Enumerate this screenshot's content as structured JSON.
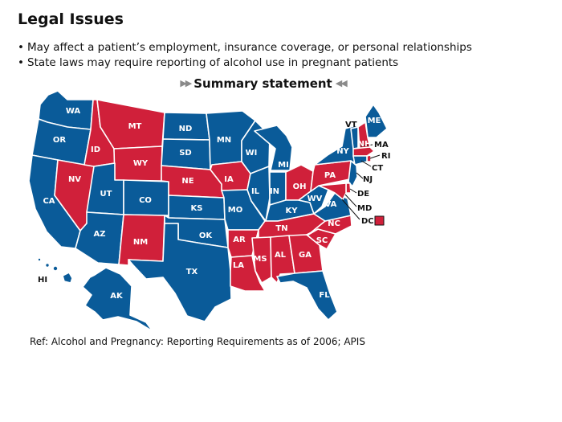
{
  "title": "Legal Issues",
  "bullets": [
    "May affect a patient’s employment, insurance coverage, or personal relationships",
    "State laws may require reporting of alcohol use in pregnant patients"
  ],
  "summary_button": "Summary statement",
  "reference": "Ref: Alcohol and Pregnancy: Reporting Requirements as of 2006; APIS",
  "colors": {
    "reporting_required": "#d0203a",
    "not_required": "#0a5b99",
    "border": "#ffffff"
  },
  "map": {
    "states": {
      "WA": {
        "label": "WA",
        "status": "blue"
      },
      "OR": {
        "label": "OR",
        "status": "blue"
      },
      "CA": {
        "label": "CA",
        "status": "blue"
      },
      "NV": {
        "label": "NV",
        "status": "red"
      },
      "ID": {
        "label": "ID",
        "status": "red"
      },
      "MT": {
        "label": "MT",
        "status": "red"
      },
      "WY": {
        "label": "WY",
        "status": "red"
      },
      "UT": {
        "label": "UT",
        "status": "blue"
      },
      "AZ": {
        "label": "AZ",
        "status": "blue"
      },
      "CO": {
        "label": "CO",
        "status": "blue"
      },
      "NM": {
        "label": "NM",
        "status": "red"
      },
      "ND": {
        "label": "ND",
        "status": "blue"
      },
      "SD": {
        "label": "SD",
        "status": "blue"
      },
      "NE": {
        "label": "NE",
        "status": "red"
      },
      "KS": {
        "label": "KS",
        "status": "blue"
      },
      "OK": {
        "label": "OK",
        "status": "blue"
      },
      "TX": {
        "label": "TX",
        "status": "blue"
      },
      "MN": {
        "label": "MN",
        "status": "blue"
      },
      "IA": {
        "label": "IA",
        "status": "red"
      },
      "MO": {
        "label": "MO",
        "status": "blue"
      },
      "AR": {
        "label": "AR",
        "status": "red"
      },
      "LA": {
        "label": "LA",
        "status": "red"
      },
      "WI": {
        "label": "WI",
        "status": "blue"
      },
      "IL": {
        "label": "IL",
        "status": "blue"
      },
      "MI": {
        "label": "MI",
        "status": "blue"
      },
      "IN": {
        "label": "IN",
        "status": "blue"
      },
      "OH": {
        "label": "OH",
        "status": "red"
      },
      "KY": {
        "label": "KY",
        "status": "blue"
      },
      "TN": {
        "label": "TN",
        "status": "red"
      },
      "MS": {
        "label": "MS",
        "status": "red"
      },
      "AL": {
        "label": "AL",
        "status": "red"
      },
      "GA": {
        "label": "GA",
        "status": "red"
      },
      "FL": {
        "label": "FL",
        "status": "blue"
      },
      "SC": {
        "label": "SC",
        "status": "red"
      },
      "NC": {
        "label": "NC",
        "status": "red"
      },
      "VA": {
        "label": "VA",
        "status": "blue"
      },
      "WV": {
        "label": "WV",
        "status": "blue"
      },
      "PA": {
        "label": "PA",
        "status": "red"
      },
      "NY": {
        "label": "NY",
        "status": "blue"
      },
      "ME": {
        "label": "ME",
        "status": "blue"
      },
      "VT": {
        "label": "VT",
        "status": "blue"
      },
      "NH": {
        "label": "NH",
        "status": "red"
      },
      "MA": {
        "label": "MA",
        "status": "red"
      },
      "RI": {
        "label": "RI",
        "status": "red"
      },
      "CT": {
        "label": "CT",
        "status": "blue"
      },
      "NJ": {
        "label": "NJ",
        "status": "blue"
      },
      "DE": {
        "label": "DE",
        "status": "red"
      },
      "MD": {
        "label": "MD",
        "status": "red"
      },
      "DC": {
        "label": "DC",
        "status": "red"
      },
      "AK": {
        "label": "AK",
        "status": "blue"
      },
      "HI": {
        "label": "HI",
        "status": "blue"
      }
    }
  }
}
